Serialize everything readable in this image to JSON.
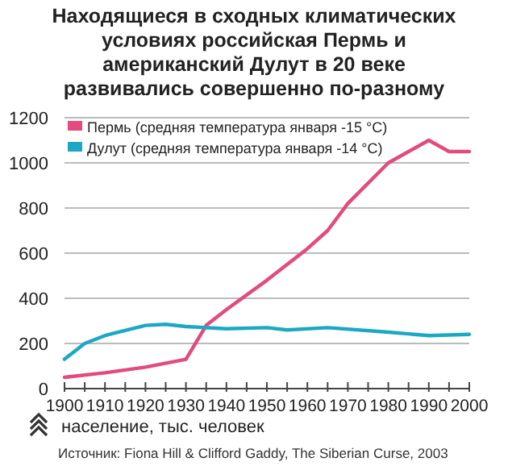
{
  "chart_data": {
    "type": "line",
    "title": "Находящиеся в сходных климатических условиях российская Пермь и американский Дулут в 20 веке развивались совершенно по-разному",
    "annotations": [
      "население, тыс. человек",
      "Источник: Fiona Hill & Clifford Gaddy, The Siberian Curse, 2003"
    ],
    "series": [
      {
        "name": "Пермь (средняя температура января -15 °С)",
        "color": "#e24b7c",
        "x": [
          1900,
          1910,
          1920,
          1930,
          1935,
          1940,
          1950,
          1960,
          1965,
          1970,
          1980,
          1985,
          1990,
          1995,
          2000
        ],
        "values": [
          50,
          70,
          95,
          130,
          280,
          350,
          480,
          620,
          700,
          820,
          1000,
          1050,
          1100,
          1050,
          1050
        ]
      },
      {
        "name": "Дулут (средняя температура января -14 °С)",
        "color": "#1ba8c4",
        "x": [
          1900,
          1905,
          1910,
          1920,
          1925,
          1930,
          1940,
          1950,
          1955,
          1965,
          1980,
          1990,
          2000
        ],
        "values": [
          130,
          200,
          235,
          280,
          285,
          275,
          265,
          270,
          260,
          270,
          250,
          235,
          240
        ]
      }
    ],
    "xlim": [
      1900,
      2000
    ],
    "xticks": [
      1900,
      {
        "value": 1905,
        "label": null
      },
      1910,
      {
        "value": 1915,
        "label": null
      },
      1920,
      {
        "value": 1925,
        "label": null
      },
      1930,
      {
        "value": 1935,
        "label": null
      },
      1940,
      {
        "value": 1945,
        "label": null
      },
      1950,
      {
        "value": 1955,
        "label": null
      },
      1960,
      {
        "value": 1965,
        "label": null
      },
      1970,
      {
        "value": 1975,
        "label": null
      },
      1980,
      {
        "value": 1985,
        "label": null
      },
      1990,
      {
        "value": 1995,
        "label": null
      },
      2000
    ],
    "ylim": [
      0,
      1200
    ],
    "yticks": [
      0,
      200,
      400,
      600,
      800,
      1000,
      1200
    ],
    "grid": "y",
    "legend": "top left",
    "marker": "none",
    "line_style": "solid"
  }
}
